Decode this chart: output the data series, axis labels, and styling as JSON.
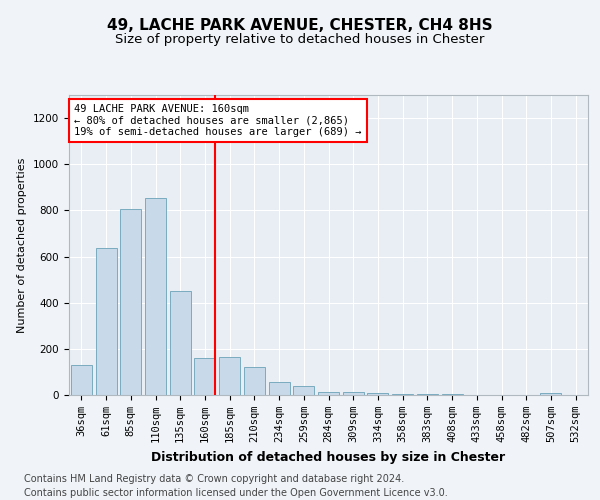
{
  "title1": "49, LACHE PARK AVENUE, CHESTER, CH4 8HS",
  "title2": "Size of property relative to detached houses in Chester",
  "xlabel": "Distribution of detached houses by size in Chester",
  "ylabel": "Number of detached properties",
  "categories": [
    "36sqm",
    "61sqm",
    "85sqm",
    "110sqm",
    "135sqm",
    "160sqm",
    "185sqm",
    "210sqm",
    "234sqm",
    "259sqm",
    "284sqm",
    "309sqm",
    "334sqm",
    "358sqm",
    "383sqm",
    "408sqm",
    "433sqm",
    "458sqm",
    "482sqm",
    "507sqm",
    "532sqm"
  ],
  "values": [
    130,
    635,
    805,
    855,
    450,
    160,
    165,
    120,
    55,
    40,
    15,
    15,
    10,
    5,
    5,
    5,
    2,
    2,
    0,
    10,
    0
  ],
  "bar_color": "#c8daea",
  "bar_edge_color": "#7aabbf",
  "highlight_x": "160sqm",
  "highlight_line_color": "red",
  "annotation_text": "49 LACHE PARK AVENUE: 160sqm\n← 80% of detached houses are smaller (2,865)\n19% of semi-detached houses are larger (689) →",
  "annotation_box_color": "white",
  "annotation_box_edge": "red",
  "ylim": [
    0,
    1300
  ],
  "yticks": [
    0,
    200,
    400,
    600,
    800,
    1000,
    1200
  ],
  "footer": "Contains HM Land Registry data © Crown copyright and database right 2024.\nContains public sector information licensed under the Open Government Licence v3.0.",
  "bg_color": "#f0f4f8",
  "plot_bg_color": "#e8eef4",
  "title1_fontsize": 11,
  "title2_fontsize": 9.5,
  "xlabel_fontsize": 9,
  "ylabel_fontsize": 8,
  "footer_fontsize": 7,
  "tick_fontsize": 7.5,
  "annot_fontsize": 7.5
}
